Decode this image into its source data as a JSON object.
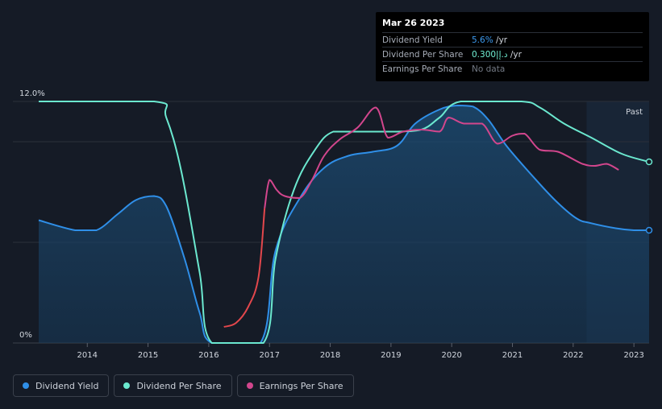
{
  "tooltip": {
    "date": "Mar 26 2023",
    "rows": [
      {
        "label": "Dividend Yield",
        "value": "5.6%",
        "suffix": " /yr"
      },
      {
        "label": "Dividend Per Share",
        "value": "0.300|د.إ",
        "suffix": " /yr"
      },
      {
        "label": "Earnings Per Share",
        "value": "No data",
        "suffix": ""
      }
    ]
  },
  "past_label": "Past",
  "legend": [
    {
      "label": "Dividend Yield",
      "color": "#2f8fe8"
    },
    {
      "label": "Dividend Per Share",
      "color": "#6be8cf"
    },
    {
      "label": "Earnings Per Share",
      "color": "#d2468d"
    }
  ],
  "chart_data": {
    "type": "line",
    "title": "",
    "xlabel": "",
    "ylabel": "",
    "xlim": [
      2013.2,
      2023.25
    ],
    "ylim": [
      0,
      12
    ],
    "y_tick_labels": [
      {
        "value": 12,
        "label": "12.0%"
      },
      {
        "value": 0,
        "label": "0%"
      }
    ],
    "gridlines": [
      12,
      10,
      5,
      0
    ],
    "x_ticks": [
      2014,
      2015,
      2016,
      2017,
      2018,
      2019,
      2020,
      2021,
      2022,
      2023
    ],
    "past_region_start": 2022.22,
    "colors": {
      "dividend_yield": "#2f8fe8",
      "dividend_per_share": "#6be8cf",
      "eps_negative": "#e3474c",
      "eps": "#d2468d"
    },
    "series": [
      {
        "name": "Dividend Yield",
        "key": "dividend_yield",
        "fill": true,
        "points": [
          [
            2013.2,
            6.1
          ],
          [
            2013.8,
            5.6
          ],
          [
            2014.15,
            5.6
          ],
          [
            2014.5,
            6.4
          ],
          [
            2014.8,
            7.1
          ],
          [
            2015.1,
            7.3
          ],
          [
            2015.3,
            6.8
          ],
          [
            2015.6,
            4.2
          ],
          [
            2015.85,
            1.5
          ],
          [
            2016.05,
            0
          ],
          [
            2016.85,
            0
          ],
          [
            2017.1,
            4.6
          ],
          [
            2017.5,
            7.2
          ],
          [
            2017.9,
            8.7
          ],
          [
            2018.3,
            9.3
          ],
          [
            2018.7,
            9.5
          ],
          [
            2019.1,
            9.8
          ],
          [
            2019.4,
            10.9
          ],
          [
            2019.8,
            11.6
          ],
          [
            2020.1,
            11.8
          ],
          [
            2020.35,
            11.75
          ],
          [
            2020.6,
            11.1
          ],
          [
            2020.9,
            9.8
          ],
          [
            2021.3,
            8.4
          ],
          [
            2021.7,
            7.1
          ],
          [
            2022.05,
            6.2
          ],
          [
            2022.3,
            5.95
          ],
          [
            2022.7,
            5.7
          ],
          [
            2023.0,
            5.6
          ],
          [
            2023.25,
            5.6
          ]
        ]
      },
      {
        "name": "Dividend Per Share",
        "key": "dividend_per_share",
        "fill": false,
        "points": [
          [
            2013.2,
            12
          ],
          [
            2015.1,
            12
          ],
          [
            2015.3,
            11.2
          ],
          [
            2015.55,
            8.5
          ],
          [
            2015.85,
            3.5
          ],
          [
            2016.05,
            0
          ],
          [
            2016.9,
            0
          ],
          [
            2017.1,
            4.2
          ],
          [
            2017.4,
            7.6
          ],
          [
            2017.75,
            9.6
          ],
          [
            2018.05,
            10.5
          ],
          [
            2018.5,
            10.5
          ],
          [
            2019.05,
            10.5
          ],
          [
            2019.5,
            10.6
          ],
          [
            2019.8,
            11.2
          ],
          [
            2020.15,
            12
          ],
          [
            2021.15,
            12
          ],
          [
            2021.45,
            11.7
          ],
          [
            2021.85,
            10.9
          ],
          [
            2022.3,
            10.2
          ],
          [
            2022.8,
            9.4
          ],
          [
            2023.25,
            9.0
          ]
        ]
      },
      {
        "name": "Earnings Per Share",
        "key": "eps",
        "fill": false,
        "negative_until": 2016.92,
        "points": [
          [
            2016.25,
            0.8
          ],
          [
            2016.45,
            1.0
          ],
          [
            2016.65,
            1.8
          ],
          [
            2016.82,
            3.3
          ],
          [
            2016.92,
            6.7
          ],
          [
            2017.0,
            8.1
          ],
          [
            2017.12,
            7.6
          ],
          [
            2017.25,
            7.3
          ],
          [
            2017.5,
            7.2
          ],
          [
            2017.7,
            8.1
          ],
          [
            2017.9,
            9.3
          ],
          [
            2018.15,
            10.1
          ],
          [
            2018.45,
            10.7
          ],
          [
            2018.75,
            11.7
          ],
          [
            2018.95,
            10.2
          ],
          [
            2019.2,
            10.5
          ],
          [
            2019.5,
            10.6
          ],
          [
            2019.8,
            10.5
          ],
          [
            2019.95,
            11.2
          ],
          [
            2020.2,
            10.9
          ],
          [
            2020.5,
            10.9
          ],
          [
            2020.75,
            9.9
          ],
          [
            2021.0,
            10.3
          ],
          [
            2021.2,
            10.4
          ],
          [
            2021.45,
            9.6
          ],
          [
            2021.75,
            9.5
          ],
          [
            2022.15,
            8.9
          ],
          [
            2022.35,
            8.8
          ],
          [
            2022.55,
            8.9
          ],
          [
            2022.75,
            8.6
          ]
        ]
      }
    ],
    "end_markers": [
      "dividend_yield",
      "dividend_per_share"
    ]
  }
}
